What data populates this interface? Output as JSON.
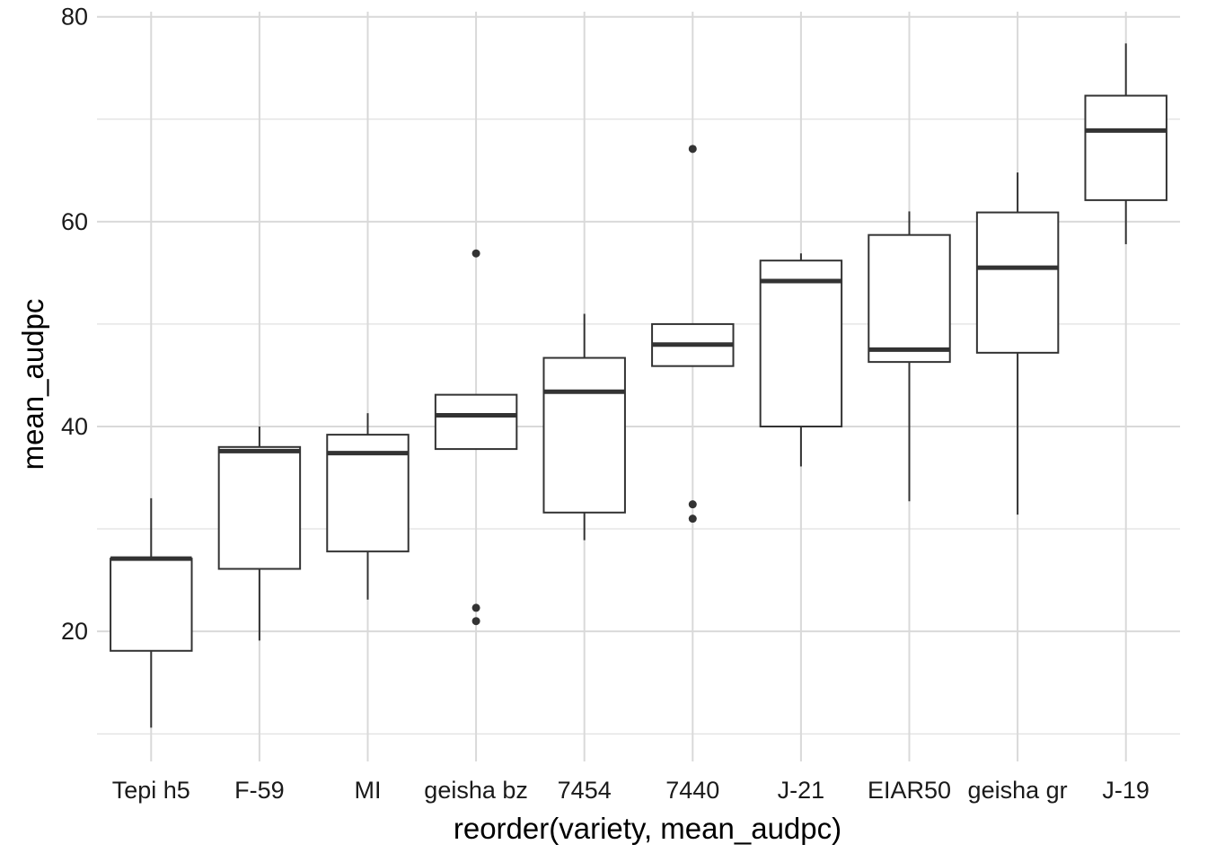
{
  "chart_data": {
    "type": "box",
    "xlabel": "reorder(variety, mean_audpc)",
    "ylabel": "mean_audpc",
    "ylim": [
      7.3,
      80.5
    ],
    "yticks": [
      20,
      40,
      60,
      80
    ],
    "grid": true,
    "categories": [
      "Tepi h5",
      "F-59",
      "MI",
      "geisha bz",
      "7454",
      "7440",
      "J-21",
      "EIAR50",
      "geisha gr",
      "J-19"
    ],
    "boxes": [
      {
        "whisker_low": 10.6,
        "q1": 18.1,
        "median": 27.1,
        "q3": 27.1,
        "whisker_high": 33.0,
        "outliers": []
      },
      {
        "whisker_low": 19.1,
        "q1": 26.1,
        "median": 37.6,
        "q3": 38.0,
        "whisker_high": 40.0,
        "outliers": []
      },
      {
        "whisker_low": 23.1,
        "q1": 27.8,
        "median": 37.4,
        "q3": 39.2,
        "whisker_high": 41.3,
        "outliers": []
      },
      {
        "whisker_low": 37.8,
        "q1": 37.8,
        "median": 41.1,
        "q3": 43.1,
        "whisker_high": 43.1,
        "outliers": [
          56.9,
          22.3,
          21.0
        ]
      },
      {
        "whisker_low": 28.9,
        "q1": 31.6,
        "median": 43.4,
        "q3": 46.7,
        "whisker_high": 51.0,
        "outliers": []
      },
      {
        "whisker_low": 45.9,
        "q1": 45.9,
        "median": 48.0,
        "q3": 50.0,
        "whisker_high": 50.0,
        "outliers": [
          67.1,
          32.4,
          31.0
        ]
      },
      {
        "whisker_low": 36.1,
        "q1": 40.0,
        "median": 54.2,
        "q3": 56.2,
        "whisker_high": 56.9,
        "outliers": []
      },
      {
        "whisker_low": 32.7,
        "q1": 46.3,
        "median": 47.5,
        "q3": 58.7,
        "whisker_high": 61.0,
        "outliers": []
      },
      {
        "whisker_low": 31.4,
        "q1": 47.2,
        "median": 55.5,
        "q3": 60.9,
        "whisker_high": 64.8,
        "outliers": []
      },
      {
        "whisker_low": 57.8,
        "q1": 62.1,
        "median": 68.9,
        "q3": 72.3,
        "whisker_high": 77.4,
        "outliers": []
      }
    ],
    "colors": {
      "grid": "#d9d9d9",
      "box_stroke": "#333333",
      "box_fill": "#ffffff",
      "outlier": "#333333"
    }
  }
}
